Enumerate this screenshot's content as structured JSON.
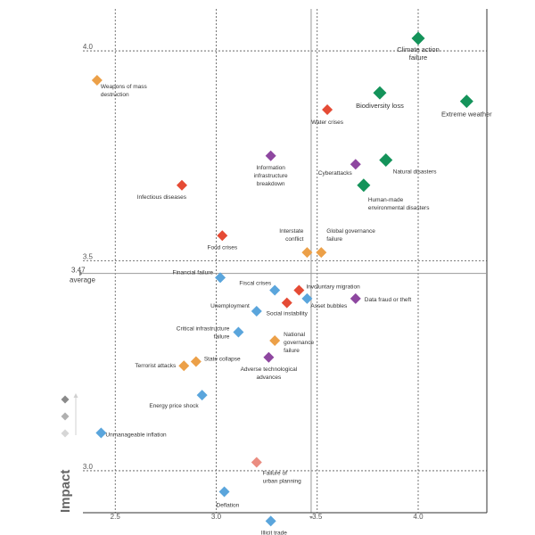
{
  "chart_data": {
    "type": "scatter",
    "title": "",
    "xlabel": "",
    "ylabel": "Impact",
    "xlim": [
      2.34,
      4.34
    ],
    "ylim": [
      2.9,
      4.1
    ],
    "x_ticks": [
      2.5,
      3.0,
      3.5,
      4.0
    ],
    "x_tick_labels": [
      "2.5",
      "3.0",
      "3.5",
      "4.0"
    ],
    "y_ticks": [
      3.0,
      3.5,
      4.0
    ],
    "y_tick_labels": [
      "3.0",
      "3.5",
      "4.0"
    ],
    "average": {
      "value": 3.47,
      "value_label": "3.47",
      "label": "average"
    },
    "category_colors": {
      "economic": "#5aa5dc",
      "environmental": "#14935a",
      "geopolitical": "#eca048",
      "societal": "#e54b35",
      "technological": "#8e47a0",
      "societal_light": "#ea8c80"
    },
    "legend_colors": [
      "#8a8a8a",
      "#b0b0b0",
      "#d6d6d6"
    ],
    "points": [
      {
        "label": "Climate action\nfailure",
        "x": 4.0,
        "y": 4.03,
        "category": "environmental"
      },
      {
        "label": "Extreme weather",
        "x": 4.24,
        "y": 3.88,
        "category": "environmental"
      },
      {
        "label": "Biodiversity loss",
        "x": 3.81,
        "y": 3.9,
        "category": "environmental"
      },
      {
        "label": "Natural disasters",
        "x": 3.84,
        "y": 3.74,
        "category": "environmental"
      },
      {
        "label": "Human-made\nenvironmental disasters",
        "x": 3.73,
        "y": 3.68,
        "category": "environmental"
      },
      {
        "label": "Water crises",
        "x": 3.55,
        "y": 3.86,
        "category": "societal"
      },
      {
        "label": "Cyberattacks",
        "x": 3.69,
        "y": 3.73,
        "category": "technological"
      },
      {
        "label": "Information\ninfrastructure\nbreakdown",
        "x": 3.27,
        "y": 3.75,
        "category": "technological"
      },
      {
        "label": "Weapons of mass\ndestruction",
        "x": 2.41,
        "y": 3.93,
        "category": "geopolitical"
      },
      {
        "label": "Infectious diseases",
        "x": 2.83,
        "y": 3.68,
        "category": "societal"
      },
      {
        "label": "Food crises",
        "x": 3.03,
        "y": 3.56,
        "category": "societal"
      },
      {
        "label": "Interstate\nconflict",
        "x": 3.45,
        "y": 3.52,
        "category": "geopolitical"
      },
      {
        "label": "Global governance\nfailure",
        "x": 3.52,
        "y": 3.52,
        "category": "geopolitical"
      },
      {
        "label": "Financial failure",
        "x": 3.02,
        "y": 3.46,
        "category": "economic"
      },
      {
        "label": "Fiscal crises",
        "x": 3.29,
        "y": 3.43,
        "category": "economic"
      },
      {
        "label": "Involuntary migration",
        "x": 3.41,
        "y": 3.43,
        "category": "societal"
      },
      {
        "label": "Social instability",
        "x": 3.35,
        "y": 3.4,
        "category": "societal"
      },
      {
        "label": "Asset bubbles",
        "x": 3.45,
        "y": 3.41,
        "category": "economic"
      },
      {
        "label": "Data fraud or theft",
        "x": 3.69,
        "y": 3.41,
        "category": "technological"
      },
      {
        "label": "Unemployment",
        "x": 3.2,
        "y": 3.38,
        "category": "economic"
      },
      {
        "label": "Critical infrastructure\nfailure",
        "x": 3.11,
        "y": 3.33,
        "category": "economic"
      },
      {
        "label": "National\ngovernance\nfailure",
        "x": 3.29,
        "y": 3.31,
        "category": "geopolitical"
      },
      {
        "label": "Adverse technological\nadvances",
        "x": 3.26,
        "y": 3.27,
        "category": "technological"
      },
      {
        "label": "State collapse",
        "x": 2.9,
        "y": 3.26,
        "category": "geopolitical"
      },
      {
        "label": "Terrorist attacks",
        "x": 2.84,
        "y": 3.25,
        "category": "geopolitical"
      },
      {
        "label": "Energy price shock",
        "x": 2.93,
        "y": 3.18,
        "category": "economic"
      },
      {
        "label": "Unmanageable inflation",
        "x": 2.43,
        "y": 3.09,
        "category": "economic"
      },
      {
        "label": "Failure of\nurban planning",
        "x": 3.2,
        "y": 3.02,
        "category": "societal_light"
      },
      {
        "label": "Deflation",
        "x": 3.04,
        "y": 2.95,
        "category": "economic"
      },
      {
        "label": "Illicit trade",
        "x": 3.27,
        "y": 2.88,
        "category": "economic"
      }
    ]
  }
}
